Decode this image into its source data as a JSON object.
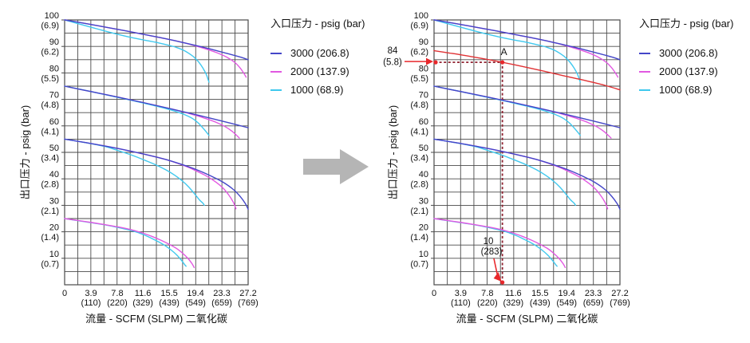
{
  "page": {
    "background": "#ffffff"
  },
  "legend": {
    "title": "入口压力 - psig (bar)",
    "items": [
      {
        "label": "3000 (206.8)",
        "color": "#4446c8"
      },
      {
        "label": "2000 (137.9)",
        "color": "#e158e1"
      },
      {
        "label": "1000 (68.9)",
        "color": "#3fc8ee"
      }
    ]
  },
  "transform_arrow": {
    "color": "#b5b5b5",
    "direction": "right"
  },
  "chart_data": [
    {
      "id": "flow-curves-base",
      "type": "line",
      "title": "",
      "xlabel": "流量 - SCFM (SLPM) 二氧化碳",
      "ylabel": "出口压力 - psig (bar)",
      "legend_title": "入口压力 - psig (bar)",
      "xlim": [
        0,
        27.2
      ],
      "ylim": [
        0,
        100
      ],
      "x_divisions": 14,
      "y_grid_step": 5,
      "grid": "on",
      "grid_color": "#4a4a4a",
      "x_ticks": [
        {
          "v": 0,
          "label": "0",
          "sub": ""
        },
        {
          "v": 3.9,
          "label": "3.9",
          "sub": "(110)"
        },
        {
          "v": 7.8,
          "label": "7.8",
          "sub": "(220)"
        },
        {
          "v": 11.6,
          "label": "11.6",
          "sub": "(329)"
        },
        {
          "v": 15.5,
          "label": "15.5",
          "sub": "(439)"
        },
        {
          "v": 19.4,
          "label": "19.4",
          "sub": "(549)"
        },
        {
          "v": 23.3,
          "label": "23.3",
          "sub": "(659)"
        },
        {
          "v": 27.2,
          "label": "27.2",
          "sub": "(769)"
        }
      ],
      "y_ticks": [
        {
          "v": 100,
          "label": "100",
          "sub": "(6.9)"
        },
        {
          "v": 90,
          "label": "90",
          "sub": "(6.2)"
        },
        {
          "v": 80,
          "label": "80",
          "sub": "(5.5)"
        },
        {
          "v": 70,
          "label": "70",
          "sub": "(4.8)"
        },
        {
          "v": 60,
          "label": "60",
          "sub": "(4.1)"
        },
        {
          "v": 50,
          "label": "50",
          "sub": "(3.4)"
        },
        {
          "v": 40,
          "label": "40",
          "sub": "(2.8)"
        },
        {
          "v": 30,
          "label": "30",
          "sub": "(2.1)"
        },
        {
          "v": 20,
          "label": "20",
          "sub": "(1.4)"
        },
        {
          "v": 10,
          "label": "10",
          "sub": "(0.7)"
        }
      ],
      "series": [
        {
          "name": "set100-inlet2000",
          "inlet": "2000 (137.9)",
          "color": "#e158e1",
          "points": [
            [
              0,
              100
            ],
            [
              3,
              98.7
            ],
            [
              6,
              97.3
            ],
            [
              9,
              95.9
            ],
            [
              12,
              94.4
            ],
            [
              15,
              92.9
            ],
            [
              17,
              91.8
            ],
            [
              19,
              90.5
            ],
            [
              21,
              89
            ],
            [
              22.5,
              87.7
            ],
            [
              24,
              86
            ],
            [
              25.2,
              84
            ],
            [
              26,
              81.9
            ],
            [
              26.6,
              79.7
            ],
            [
              26.9,
              78.4
            ]
          ]
        },
        {
          "name": "set100-inlet1000",
          "inlet": "1000 (68.9)",
          "color": "#3fc8ee",
          "points": [
            [
              0,
              100
            ],
            [
              2,
              98.6
            ],
            [
              4,
              97.2
            ],
            [
              6,
              95.8
            ],
            [
              8,
              94.5
            ],
            [
              10,
              93.3
            ],
            [
              12,
              92.3
            ],
            [
              14,
              91.3
            ],
            [
              15.5,
              90.4
            ],
            [
              16.6,
              89.6
            ],
            [
              17.6,
              88.6
            ],
            [
              18.4,
              87.4
            ],
            [
              19.2,
              85.9
            ],
            [
              19.9,
              84
            ],
            [
              20.5,
              81.8
            ],
            [
              21,
              79.4
            ],
            [
              21.3,
              77.2
            ],
            [
              21.4,
              76.5
            ]
          ]
        },
        {
          "name": "set100-inlet3000",
          "inlet": "3000 (206.8)",
          "color": "#4446c8",
          "points": [
            [
              0,
              100
            ],
            [
              3,
              98.7
            ],
            [
              6,
              97.3
            ],
            [
              9,
              95.9
            ],
            [
              12,
              94.4
            ],
            [
              15,
              92.9
            ],
            [
              18,
              91.2
            ],
            [
              21,
              89.4
            ],
            [
              24,
              87.4
            ],
            [
              26,
              86
            ],
            [
              27.2,
              85
            ]
          ]
        },
        {
          "name": "set75-inlet2000",
          "inlet": "2000 (137.9)",
          "color": "#e158e1",
          "points": [
            [
              0,
              75
            ],
            [
              4,
              72.9
            ],
            [
              8,
              70.8
            ],
            [
              12,
              68.6
            ],
            [
              16,
              66.3
            ],
            [
              18,
              65
            ],
            [
              19.5,
              63.9
            ],
            [
              21,
              62.7
            ],
            [
              22.5,
              61.3
            ],
            [
              23.8,
              59.7
            ],
            [
              24.8,
              58
            ],
            [
              25.5,
              56.4
            ],
            [
              25.9,
              55.4
            ]
          ]
        },
        {
          "name": "set75-inlet1000",
          "inlet": "1000 (68.9)",
          "color": "#3fc8ee",
          "points": [
            [
              0,
              75
            ],
            [
              4,
              72.9
            ],
            [
              8,
              70.7
            ],
            [
              10,
              69.6
            ],
            [
              12,
              68.4
            ],
            [
              14,
              67.2
            ],
            [
              15.5,
              66.2
            ],
            [
              17,
              65
            ],
            [
              18,
              64
            ],
            [
              19,
              62.7
            ],
            [
              19.8,
              61.1
            ],
            [
              20.5,
              59.2
            ],
            [
              21,
              57.7
            ],
            [
              21.4,
              56.4
            ]
          ]
        },
        {
          "name": "set75-inlet3000",
          "inlet": "3000 (206.8)",
          "color": "#4446c8",
          "points": [
            [
              0,
              75
            ],
            [
              4,
              72.9
            ],
            [
              8,
              70.8
            ],
            [
              12,
              68.6
            ],
            [
              16,
              66.3
            ],
            [
              20,
              63.9
            ],
            [
              24,
              61.4
            ],
            [
              27.2,
              59.3
            ]
          ]
        },
        {
          "name": "set55-inlet2000",
          "inlet": "2000 (137.9)",
          "color": "#e158e1",
          "points": [
            [
              0,
              55
            ],
            [
              4,
              53.3
            ],
            [
              8,
              51.4
            ],
            [
              12,
              49.2
            ],
            [
              15,
              47.3
            ],
            [
              18,
              44.7
            ],
            [
              19.5,
              43
            ],
            [
              21,
              41.1
            ],
            [
              22.3,
              39
            ],
            [
              23.4,
              36.7
            ],
            [
              24.3,
              34
            ],
            [
              25,
              31.2
            ],
            [
              25.4,
              28.7
            ]
          ]
        },
        {
          "name": "set55-inlet1000",
          "inlet": "1000 (68.9)",
          "color": "#3fc8ee",
          "points": [
            [
              0,
              55
            ],
            [
              3,
              53.7
            ],
            [
              6,
              52.2
            ],
            [
              8,
              50.6
            ],
            [
              10,
              48.9
            ],
            [
              12,
              46.9
            ],
            [
              13.5,
              45.3
            ],
            [
              15,
              43.4
            ],
            [
              16.3,
              41.4
            ],
            [
              17.4,
              39.3
            ],
            [
              18.4,
              36.9
            ],
            [
              19.3,
              34.2
            ],
            [
              20,
              32
            ],
            [
              20.5,
              30.8
            ],
            [
              20.7,
              30
            ]
          ]
        },
        {
          "name": "set55-inlet3000",
          "inlet": "3000 (206.8)",
          "color": "#4446c8",
          "points": [
            [
              0,
              55
            ],
            [
              4,
              53.3
            ],
            [
              8,
              51.4
            ],
            [
              12,
              49.2
            ],
            [
              15,
              47.3
            ],
            [
              18,
              44.9
            ],
            [
              20,
              43
            ],
            [
              22,
              40.7
            ],
            [
              23.5,
              38.7
            ],
            [
              25,
              36
            ],
            [
              26,
              33.4
            ],
            [
              26.8,
              30.6
            ],
            [
              27.2,
              28.5
            ]
          ]
        },
        {
          "name": "set25-inlet1000",
          "inlet": "1000 (68.9)",
          "color": "#3fc8ee",
          "points": [
            [
              0,
              25
            ],
            [
              3,
              23.8
            ],
            [
              6,
              22.6
            ],
            [
              8,
              21.6
            ],
            [
              10,
              20.4
            ],
            [
              11,
              19.6
            ],
            [
              12,
              18.6
            ],
            [
              13,
              17.4
            ],
            [
              14,
              16.1
            ],
            [
              15,
              14.6
            ],
            [
              15.8,
              13.1
            ],
            [
              16.6,
              11.3
            ],
            [
              17.3,
              9.3
            ],
            [
              17.8,
              7.6
            ],
            [
              18,
              7
            ]
          ]
        },
        {
          "name": "set25-inlet2000",
          "inlet": "2000 (137.9)",
          "color": "#e158e1",
          "points": [
            [
              0,
              25
            ],
            [
              3,
              23.9
            ],
            [
              6,
              22.7
            ],
            [
              8,
              21.8
            ],
            [
              10,
              20.7
            ],
            [
              11.6,
              19.5
            ],
            [
              13,
              18.2
            ],
            [
              14.3,
              16.8
            ],
            [
              15.5,
              15.3
            ],
            [
              16.6,
              13.7
            ],
            [
              17.5,
              11.9
            ],
            [
              18.3,
              9.9
            ],
            [
              18.9,
              7.9
            ],
            [
              19.2,
              6.5
            ]
          ]
        }
      ]
    },
    {
      "id": "flow-curves-with-example-point",
      "type": "line",
      "title": "",
      "xlabel": "流量 - SCFM (SLPM) 二氧化碳",
      "ylabel": "出口压力 - psig (bar)",
      "legend_title": "入口压力 - psig (bar)",
      "xlim": [
        0,
        27.2
      ],
      "ylim": [
        0,
        100
      ],
      "x_divisions": 14,
      "y_grid_step": 5,
      "grid": "on",
      "grid_color": "#4a4a4a",
      "x_ticks": "same_as_first_chart",
      "y_ticks": "same_as_first_chart",
      "series": "same_as_first_chart",
      "extra_series": [
        {
          "name": "example-setting-curve",
          "color": "#e03234",
          "points": [
            [
              0,
              88.4
            ],
            [
              2,
              87.6
            ],
            [
              4,
              86.8
            ],
            [
              6,
              85.9
            ],
            [
              8,
              85
            ],
            [
              10,
              84
            ],
            [
              13,
              82.4
            ],
            [
              16,
              80.7
            ],
            [
              19,
              78.9
            ],
            [
              22,
              77.2
            ],
            [
              25,
              75.3
            ],
            [
              27.2,
              73.6
            ]
          ]
        }
      ],
      "annotations": {
        "color": "#e8282c",
        "guide_color": "#8f2230",
        "point": {
          "x": 10,
          "y": 84,
          "label": "A"
        },
        "y_axis_callout": {
          "line1": "84",
          "line2": "(5.8)"
        },
        "x_axis_callout": {
          "line1": "10",
          "line2": "(283)"
        }
      }
    }
  ]
}
